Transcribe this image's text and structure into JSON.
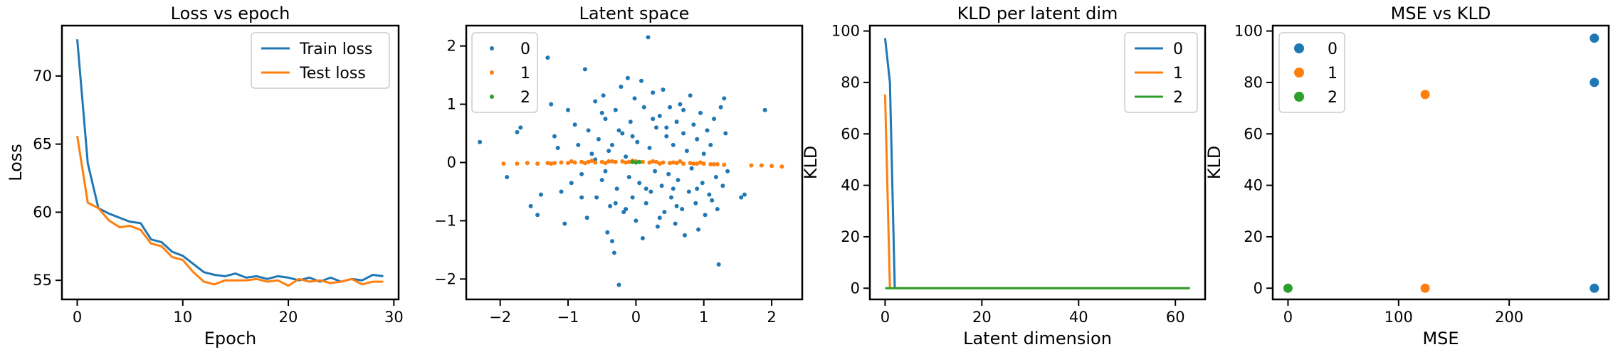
{
  "colors": {
    "blue": "#1f77b4",
    "orange": "#ff7f0e",
    "green": "#2ca02c",
    "axis": "#000000",
    "legend_border": "#cccccc"
  },
  "chart_data": [
    {
      "type": "line",
      "title": "Loss vs epoch",
      "xlabel": "Epoch",
      "ylabel": "Loss",
      "xlim": [
        -1.45,
        30.45
      ],
      "ylim": [
        53.6,
        73.7
      ],
      "xticks": [
        0,
        10,
        20,
        30
      ],
      "yticks": [
        55,
        60,
        65,
        70
      ],
      "grid": false,
      "legend": "top-right",
      "x": [
        0,
        1,
        2,
        3,
        4,
        5,
        6,
        7,
        8,
        9,
        10,
        11,
        12,
        13,
        14,
        15,
        16,
        17,
        18,
        19,
        20,
        21,
        22,
        23,
        24,
        25,
        26,
        27,
        28,
        29
      ],
      "series": [
        {
          "name": "Train loss",
          "color": "#1f77b4",
          "values": [
            72.7,
            63.6,
            60.3,
            59.9,
            59.6,
            59.3,
            59.2,
            58.0,
            57.8,
            57.1,
            56.8,
            56.2,
            55.6,
            55.4,
            55.3,
            55.5,
            55.2,
            55.3,
            55.1,
            55.3,
            55.2,
            55.0,
            55.2,
            54.9,
            55.2,
            54.9,
            55.1,
            55.0,
            55.4,
            55.3
          ]
        },
        {
          "name": "Test loss",
          "color": "#ff7f0e",
          "values": [
            65.6,
            60.7,
            60.3,
            59.4,
            58.9,
            59.0,
            58.7,
            57.7,
            57.5,
            56.7,
            56.5,
            55.6,
            54.9,
            54.7,
            55.0,
            55.0,
            55.0,
            55.1,
            54.9,
            55.0,
            54.6,
            55.1,
            54.9,
            55.0,
            54.8,
            54.9,
            55.1,
            54.7,
            54.9,
            54.9
          ]
        }
      ]
    },
    {
      "type": "scatter",
      "title": "Latent space",
      "xlabel": "",
      "ylabel": "",
      "xlim": [
        -2.5,
        2.45
      ],
      "ylim": [
        -2.35,
        2.35
      ],
      "xticks": [
        -2,
        -1,
        0,
        1,
        2
      ],
      "yticks": [
        -2,
        -1,
        0,
        1,
        2
      ],
      "grid": false,
      "legend": "top-left",
      "series": [
        {
          "name": "0",
          "color": "#1f77b4",
          "points": [
            [
              -2.3,
              0.35
            ],
            [
              -1.9,
              -0.25
            ],
            [
              -1.75,
              0.52
            ],
            [
              -1.7,
              0.6
            ],
            [
              -1.55,
              -0.75
            ],
            [
              -1.45,
              -0.9
            ],
            [
              -1.4,
              -0.55
            ],
            [
              -1.3,
              1.8
            ],
            [
              -1.25,
              1.0
            ],
            [
              -1.2,
              0.45
            ],
            [
              -1.15,
              0.25
            ],
            [
              -1.1,
              -0.5
            ],
            [
              -1.05,
              -1.05
            ],
            [
              -1.0,
              0.9
            ],
            [
              -0.95,
              -0.35
            ],
            [
              -0.9,
              0.65
            ],
            [
              -0.85,
              0.3
            ],
            [
              -0.8,
              -0.2
            ],
            [
              -0.75,
              1.6
            ],
            [
              -0.72,
              -0.95
            ],
            [
              -0.7,
              0.55
            ],
            [
              -0.65,
              0.15
            ],
            [
              -0.6,
              1.05
            ],
            [
              -0.58,
              -0.6
            ],
            [
              -0.55,
              0.4
            ],
            [
              -0.5,
              -0.3
            ],
            [
              -0.48,
              1.15
            ],
            [
              -0.45,
              0.75
            ],
            [
              -0.42,
              -1.2
            ],
            [
              -0.4,
              0.2
            ],
            [
              -0.38,
              -0.75
            ],
            [
              -0.35,
              -1.35
            ],
            [
              -0.32,
              -1.55
            ],
            [
              -0.3,
              0.9
            ],
            [
              -0.28,
              -0.45
            ],
            [
              -0.25,
              -2.1
            ],
            [
              -0.22,
              1.3
            ],
            [
              -0.2,
              0.5
            ],
            [
              -0.18,
              -0.85
            ],
            [
              -0.15,
              0.1
            ],
            [
              -0.12,
              1.45
            ],
            [
              -0.1,
              -0.25
            ],
            [
              -0.08,
              0.7
            ],
            [
              -0.05,
              -0.6
            ],
            [
              -0.02,
              1.1
            ],
            [
              0.0,
              -1.0
            ],
            [
              0.02,
              0.35
            ],
            [
              0.05,
              -0.35
            ],
            [
              0.08,
              1.4
            ],
            [
              0.1,
              -1.3
            ],
            [
              0.12,
              0.95
            ],
            [
              0.15,
              -0.7
            ],
            [
              0.18,
              2.15
            ],
            [
              0.2,
              0.25
            ],
            [
              0.22,
              -0.5
            ],
            [
              0.25,
              1.2
            ],
            [
              0.28,
              -0.15
            ],
            [
              0.3,
              0.6
            ],
            [
              0.32,
              -1.1
            ],
            [
              0.35,
              0.8
            ],
            [
              0.38,
              -0.4
            ],
            [
              0.4,
              1.25
            ],
            [
              0.42,
              -0.85
            ],
            [
              0.45,
              0.45
            ],
            [
              0.48,
              -0.2
            ],
            [
              0.5,
              0.95
            ],
            [
              0.52,
              -0.6
            ],
            [
              0.55,
              0.3
            ],
            [
              0.58,
              -1.05
            ],
            [
              0.6,
              0.7
            ],
            [
              0.62,
              -0.3
            ],
            [
              0.65,
              1.0
            ],
            [
              0.68,
              -0.8
            ],
            [
              0.7,
              0.5
            ],
            [
              0.72,
              -1.25
            ],
            [
              0.75,
              0.2
            ],
            [
              0.78,
              -0.5
            ],
            [
              0.8,
              1.15
            ],
            [
              0.82,
              -0.1
            ],
            [
              0.85,
              0.65
            ],
            [
              0.88,
              -0.7
            ],
            [
              0.9,
              0.4
            ],
            [
              0.92,
              -1.15
            ],
            [
              0.95,
              0.85
            ],
            [
              0.98,
              -0.35
            ],
            [
              1.0,
              0.15
            ],
            [
              1.02,
              -0.9
            ],
            [
              1.05,
              0.55
            ],
            [
              1.08,
              -0.55
            ],
            [
              1.1,
              0.3
            ],
            [
              1.12,
              -0.65
            ],
            [
              1.15,
              0.75
            ],
            [
              1.18,
              -0.25
            ],
            [
              1.2,
              -0.8
            ],
            [
              1.22,
              -1.75
            ],
            [
              1.25,
              0.95
            ],
            [
              1.28,
              -0.4
            ],
            [
              1.3,
              1.1
            ],
            [
              1.32,
              0.5
            ],
            [
              1.35,
              -0.15
            ],
            [
              1.55,
              -0.6
            ],
            [
              1.6,
              -0.55
            ],
            [
              1.9,
              0.9
            ],
            [
              -0.6,
              0.05
            ],
            [
              -0.35,
              0.3
            ],
            [
              0.45,
              0.6
            ],
            [
              0.15,
              -0.45
            ],
            [
              -0.15,
              -0.8
            ],
            [
              0.35,
              -0.95
            ],
            [
              -0.5,
              0.85
            ],
            [
              0.7,
              0.9
            ],
            [
              0.9,
              -0.45
            ],
            [
              -0.8,
              -0.6
            ],
            [
              -0.25,
              0.55
            ],
            [
              0.6,
              -0.75
            ],
            [
              -0.05,
              0.45
            ],
            [
              0.25,
              0.75
            ],
            [
              -0.45,
              -0.15
            ],
            [
              0.55,
              -0.45
            ],
            [
              -0.3,
              -0.7
            ]
          ]
        },
        {
          "name": "1",
          "color": "#ff7f0e",
          "points": [
            [
              -1.95,
              -0.02
            ],
            [
              -1.75,
              -0.02
            ],
            [
              -1.6,
              -0.01
            ],
            [
              -1.45,
              -0.02
            ],
            [
              -1.3,
              -0.01
            ],
            [
              -1.2,
              -0.01
            ],
            [
              -1.1,
              0.0
            ],
            [
              -1.0,
              -0.01
            ],
            [
              -0.9,
              0.0
            ],
            [
              -0.8,
              0.01
            ],
            [
              -0.7,
              0.01
            ],
            [
              -0.6,
              0.0
            ],
            [
              -0.5,
              0.01
            ],
            [
              -0.4,
              0.02
            ],
            [
              -0.3,
              0.01
            ],
            [
              -0.2,
              0.02
            ],
            [
              -0.1,
              0.01
            ],
            [
              0.0,
              0.02
            ],
            [
              0.1,
              0.01
            ],
            [
              0.2,
              0.0
            ],
            [
              0.3,
              0.01
            ],
            [
              0.4,
              0.0
            ],
            [
              0.5,
              -0.01
            ],
            [
              0.6,
              -0.01
            ],
            [
              0.7,
              -0.02
            ],
            [
              0.8,
              -0.01
            ],
            [
              0.9,
              -0.02
            ],
            [
              1.0,
              -0.02
            ],
            [
              1.1,
              -0.03
            ],
            [
              1.2,
              -0.03
            ],
            [
              1.3,
              -0.04
            ],
            [
              1.7,
              -0.05
            ],
            [
              1.85,
              -0.05
            ],
            [
              2.0,
              -0.06
            ],
            [
              2.15,
              -0.07
            ],
            [
              -0.95,
              0.02
            ],
            [
              -0.65,
              0.03
            ],
            [
              -0.35,
              0.02
            ],
            [
              -0.05,
              0.03
            ],
            [
              0.25,
              0.02
            ],
            [
              0.55,
              0.0
            ],
            [
              0.85,
              -0.02
            ],
            [
              1.15,
              -0.03
            ],
            [
              -1.25,
              -0.02
            ],
            [
              -0.45,
              -0.01
            ],
            [
              0.35,
              -0.02
            ],
            [
              0.65,
              0.02
            ],
            [
              -0.15,
              0.0
            ],
            [
              0.95,
              0.0
            ],
            [
              -0.75,
              -0.01
            ]
          ]
        },
        {
          "name": "2",
          "color": "#2ca02c",
          "points": [
            [
              0.0,
              0.0
            ],
            [
              0.05,
              0.01
            ],
            [
              -0.05,
              0.01
            ]
          ]
        }
      ]
    },
    {
      "type": "line",
      "title": "KLD per latent dim",
      "xlabel": "Latent dimension",
      "ylabel": "KLD",
      "xlim": [
        -3.15,
        66.15
      ],
      "ylim": [
        -4.35,
        102.1
      ],
      "xticks": [
        0,
        20,
        40,
        60
      ],
      "yticks": [
        0,
        20,
        40,
        60,
        80,
        100
      ],
      "grid": false,
      "legend": "top-right",
      "series": [
        {
          "name": "0",
          "color": "#1f77b4",
          "x": [
            0,
            1,
            2,
            3,
            63
          ],
          "values": [
            97.2,
            80.0,
            0.0,
            0.0,
            0.0
          ]
        },
        {
          "name": "1",
          "color": "#ff7f0e",
          "x": [
            0,
            1,
            2,
            63
          ],
          "values": [
            75.3,
            0.0,
            0.0,
            0.0
          ]
        },
        {
          "name": "2",
          "color": "#2ca02c",
          "x": [
            0,
            63
          ],
          "values": [
            0.0,
            0.0
          ]
        }
      ]
    },
    {
      "type": "scatter",
      "title": "MSE vs KLD",
      "xlabel": "MSE",
      "ylabel": "KLD",
      "xlim": [
        -13.8,
        290
      ],
      "ylim": [
        -4.35,
        102.1
      ],
      "xticks": [
        0,
        100,
        200
      ],
      "yticks": [
        0,
        20,
        40,
        60,
        80,
        100
      ],
      "grid": false,
      "legend": "top-left",
      "series": [
        {
          "name": "0",
          "color": "#1f77b4",
          "points": [
            [
              277,
              97.2
            ],
            [
              277,
              80.0
            ],
            [
              277,
              0.0
            ]
          ]
        },
        {
          "name": "1",
          "color": "#ff7f0e",
          "points": [
            [
              124,
              75.3
            ],
            [
              124,
              0.0
            ]
          ]
        },
        {
          "name": "2",
          "color": "#2ca02c",
          "points": [
            [
              0,
              0.0
            ]
          ]
        }
      ]
    }
  ]
}
